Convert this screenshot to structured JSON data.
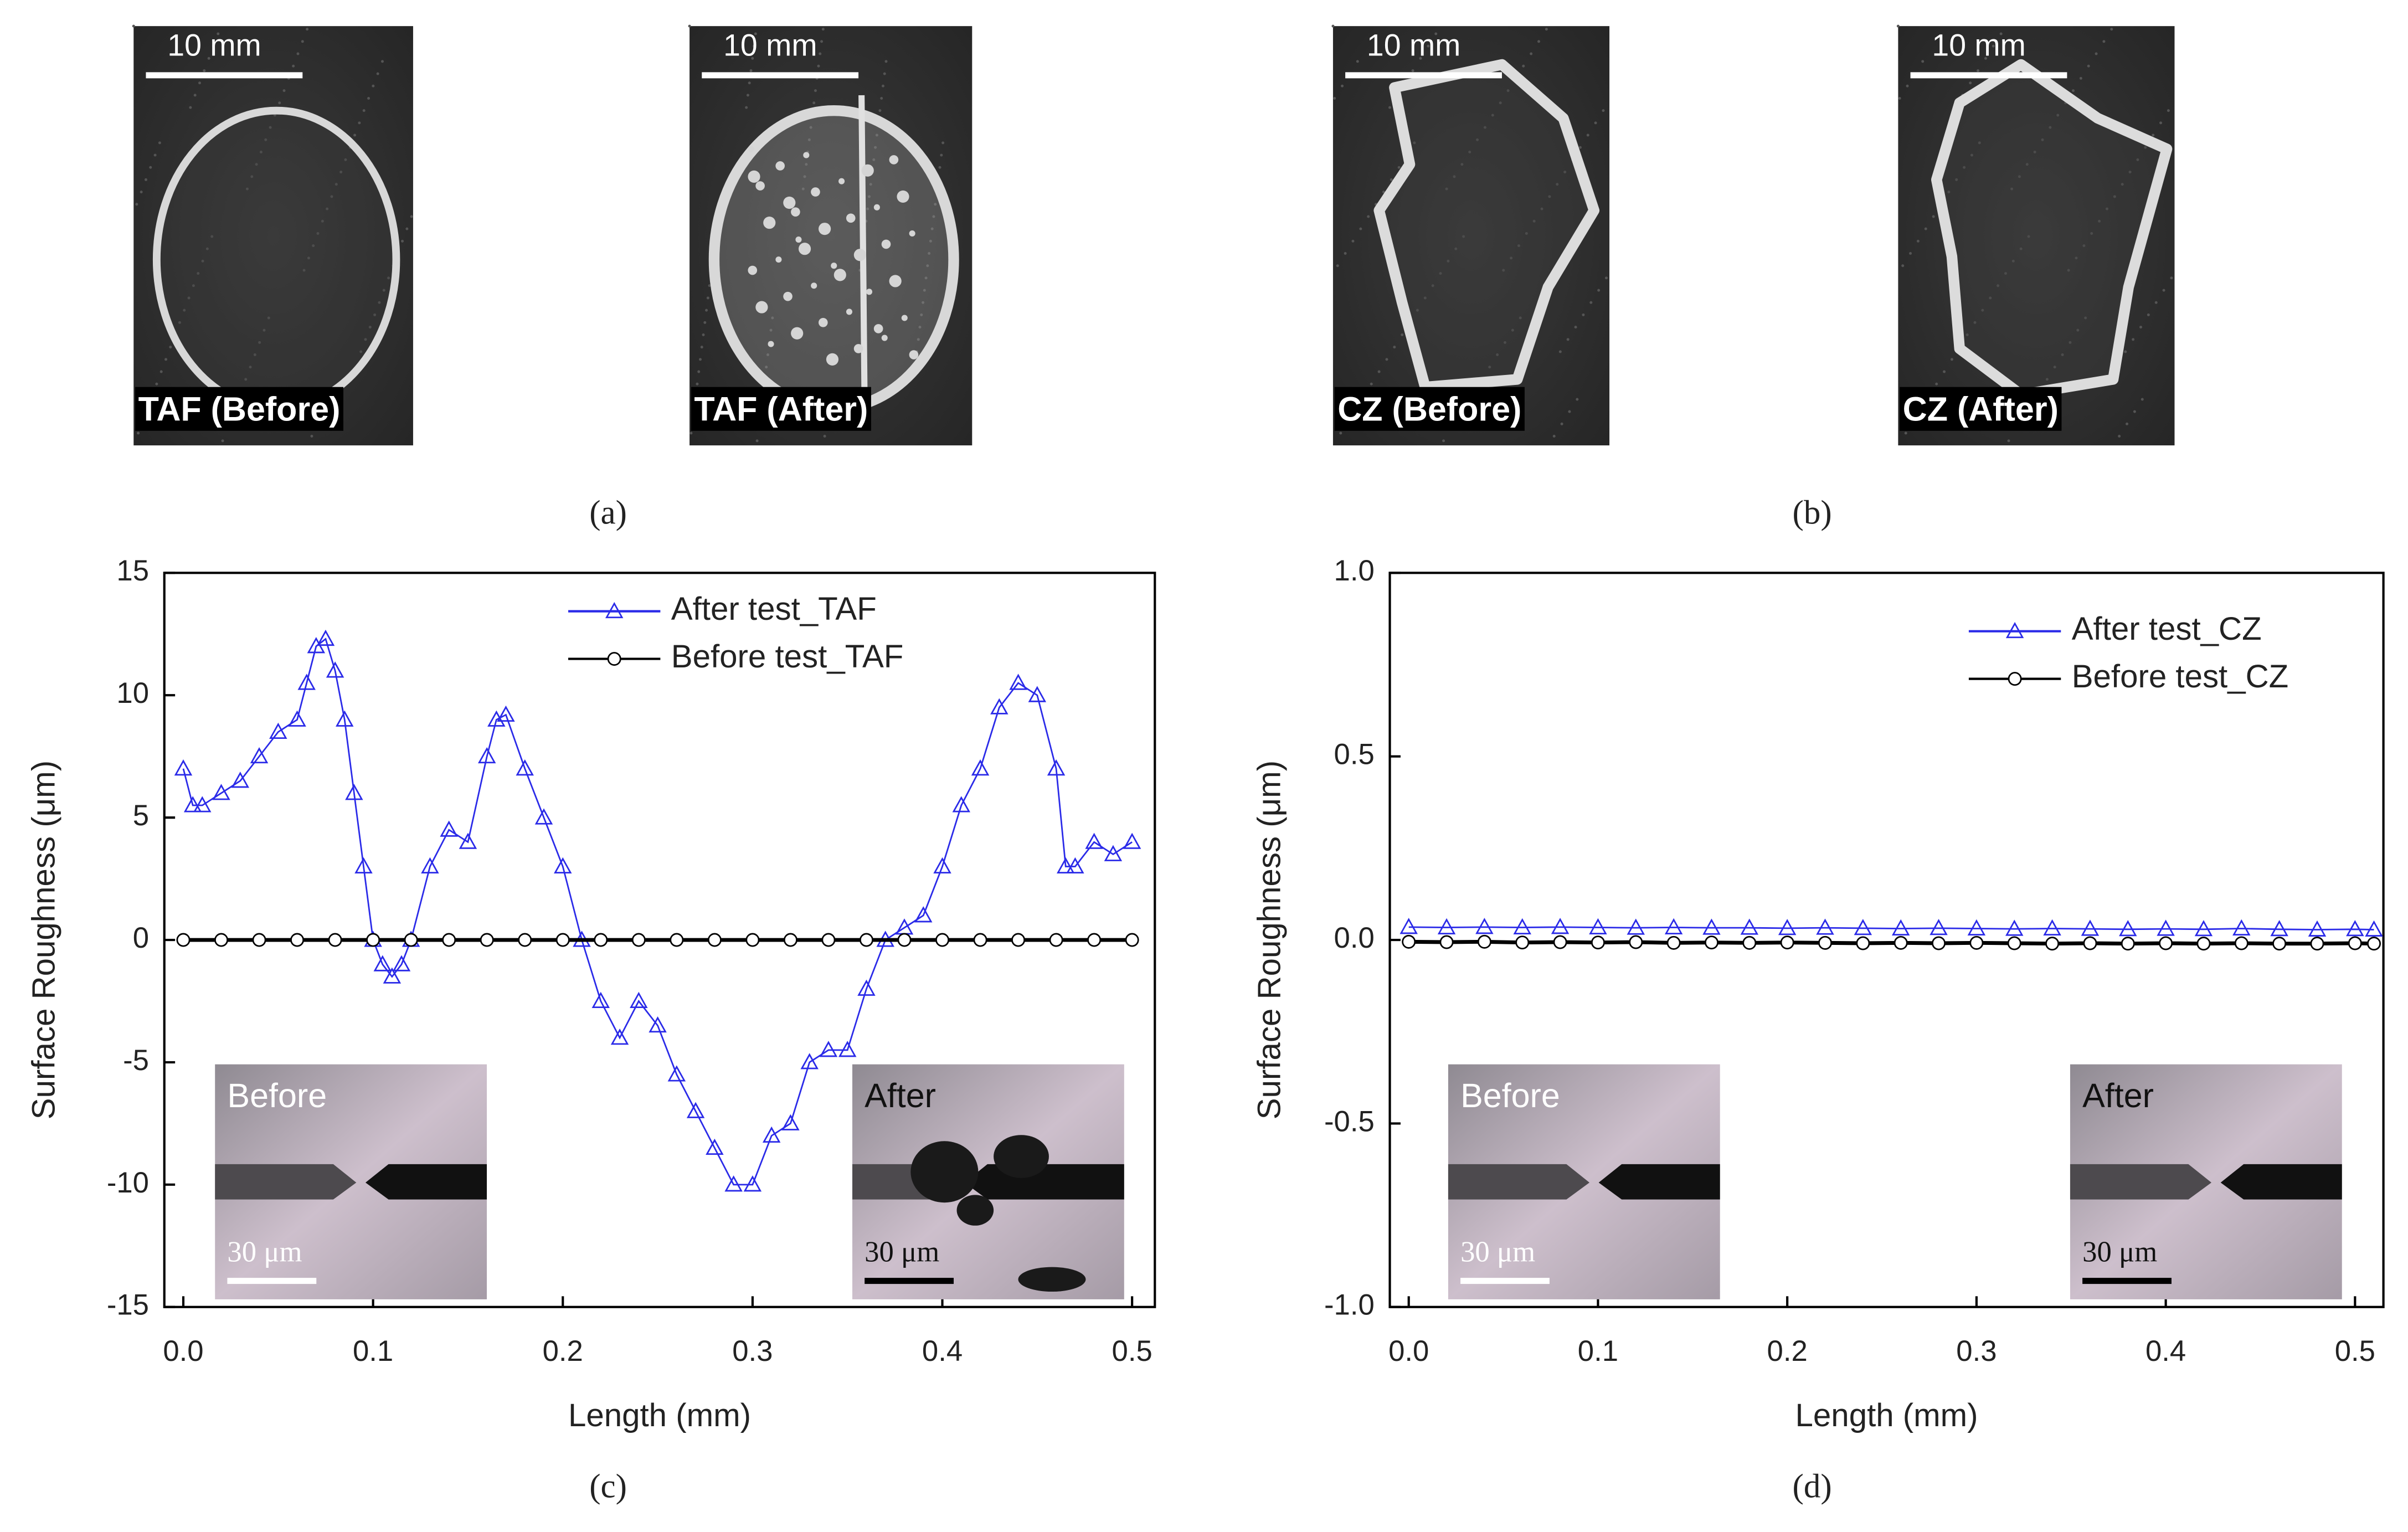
{
  "photos": [
    {
      "scale": "10 mm",
      "caption": "TAF (Before)"
    },
    {
      "scale": "10 mm",
      "caption": "TAF (After)"
    },
    {
      "scale": "10 mm",
      "caption": "CZ (Before)"
    },
    {
      "scale": "10 mm",
      "caption": "CZ (After)"
    }
  ],
  "panel_labels": [
    "(a)",
    "(b)",
    "(c)",
    "(d)"
  ],
  "chart_data": [
    {
      "type": "line",
      "xlabel": "Length (mm)",
      "ylabel": "Surface Roughness (μm)",
      "xlim": [
        -0.01,
        0.512
      ],
      "ylim": [
        -15,
        15
      ],
      "xticks": [
        {
          "value": 0,
          "label": "0.0"
        },
        0.1,
        0.2,
        0.3,
        0.4,
        0.5
      ],
      "yticks": [
        -15,
        -10,
        -5,
        0,
        5,
        10,
        15
      ],
      "legend": "upper center",
      "series": [
        {
          "name": "After test_TAF",
          "color": "#2a2ae8",
          "marker": "triangle",
          "x": [
            0,
            0.005,
            0.01,
            0.02,
            0.03,
            0.04,
            0.05,
            0.06,
            0.065,
            0.07,
            0.075,
            0.08,
            0.085,
            0.09,
            0.095,
            0.1,
            0.105,
            0.11,
            0.115,
            0.12,
            0.13,
            0.14,
            0.15,
            0.16,
            0.165,
            0.17,
            0.18,
            0.19,
            0.2,
            0.21,
            0.22,
            0.23,
            0.24,
            0.25,
            0.26,
            0.27,
            0.28,
            0.29,
            0.3,
            0.31,
            0.32,
            0.33,
            0.34,
            0.35,
            0.36,
            0.37,
            0.38,
            0.39,
            0.4,
            0.41,
            0.42,
            0.43,
            0.44,
            0.45,
            0.46,
            0.465,
            0.47,
            0.48,
            0.49,
            0.5
          ],
          "values": [
            7,
            5.5,
            5.5,
            6,
            6.5,
            7.5,
            8.5,
            9,
            10.5,
            12,
            12.3,
            11,
            9,
            6,
            3,
            0,
            -1,
            -1.5,
            -1,
            0,
            3,
            4.5,
            4,
            7.5,
            9,
            9.2,
            7,
            5,
            3,
            0,
            -2.5,
            -4,
            -2.5,
            -3.5,
            -5.5,
            -7,
            -8.5,
            -10,
            -10,
            -8,
            -7.5,
            -5,
            -4.5,
            -4.5,
            -2,
            0,
            0.5,
            1,
            3,
            5.5,
            7,
            9.5,
            10.5,
            10,
            7,
            3,
            3,
            4,
            3.5,
            4
          ]
        },
        {
          "name": "Before test_TAF",
          "color": "#000000",
          "marker": "circle",
          "x": [
            0,
            0.02,
            0.04,
            0.06,
            0.08,
            0.1,
            0.12,
            0.14,
            0.16,
            0.18,
            0.2,
            0.22,
            0.24,
            0.26,
            0.28,
            0.3,
            0.32,
            0.34,
            0.36,
            0.38,
            0.4,
            0.42,
            0.44,
            0.46,
            0.48,
            0.5
          ],
          "values": [
            0,
            0,
            0,
            0,
            0,
            0,
            0,
            0,
            0,
            0,
            0,
            0,
            0,
            0,
            0,
            0,
            0,
            0,
            0,
            0,
            0,
            0,
            0,
            0,
            0,
            0
          ]
        }
      ],
      "annotations": [
        {
          "text": "Before",
          "scale": "30 μm"
        },
        {
          "text": "After",
          "scale": "30 μm"
        }
      ]
    },
    {
      "type": "line",
      "xlabel": "Length (mm)",
      "ylabel": "Surface Roughness (μm)",
      "xlim": [
        -0.01,
        0.515
      ],
      "ylim": [
        -1,
        1
      ],
      "xticks": [
        {
          "value": 0,
          "label": "0.0"
        },
        0.1,
        0.2,
        0.3,
        0.4,
        0.5
      ],
      "yticks": [
        {
          "value": -1,
          "label": "-1.0"
        },
        -0.5,
        {
          "value": 0,
          "label": "0.0"
        },
        0.5,
        {
          "value": 1,
          "label": "1.0"
        }
      ],
      "legend": "upper right",
      "series": [
        {
          "name": "After test_CZ",
          "color": "#2a2ae8",
          "marker": "triangle",
          "x": [
            0,
            0.02,
            0.04,
            0.06,
            0.08,
            0.1,
            0.12,
            0.14,
            0.16,
            0.18,
            0.2,
            0.22,
            0.24,
            0.26,
            0.28,
            0.3,
            0.32,
            0.34,
            0.36,
            0.38,
            0.4,
            0.42,
            0.44,
            0.46,
            0.48,
            0.5,
            0.51
          ],
          "values": [
            0.035,
            0.034,
            0.035,
            0.034,
            0.035,
            0.034,
            0.033,
            0.034,
            0.033,
            0.033,
            0.032,
            0.033,
            0.032,
            0.031,
            0.032,
            0.031,
            0.03,
            0.031,
            0.03,
            0.029,
            0.03,
            0.029,
            0.031,
            0.029,
            0.028,
            0.029,
            0.028
          ]
        },
        {
          "name": "Before test_CZ",
          "color": "#000000",
          "marker": "circle",
          "x": [
            0,
            0.02,
            0.04,
            0.06,
            0.08,
            0.1,
            0.12,
            0.14,
            0.16,
            0.18,
            0.2,
            0.22,
            0.24,
            0.26,
            0.28,
            0.3,
            0.32,
            0.34,
            0.36,
            0.38,
            0.4,
            0.42,
            0.44,
            0.46,
            0.48,
            0.5,
            0.51
          ],
          "values": [
            -0.005,
            -0.006,
            -0.005,
            -0.007,
            -0.006,
            -0.007,
            -0.006,
            -0.008,
            -0.007,
            -0.008,
            -0.007,
            -0.008,
            -0.009,
            -0.008,
            -0.009,
            -0.008,
            -0.009,
            -0.01,
            -0.009,
            -0.01,
            -0.009,
            -0.01,
            -0.009,
            -0.01,
            -0.01,
            -0.009,
            -0.01
          ]
        }
      ],
      "annotations": [
        {
          "text": "Before",
          "scale": "30 μm"
        },
        {
          "text": "After",
          "scale": "30 μm"
        }
      ]
    }
  ]
}
